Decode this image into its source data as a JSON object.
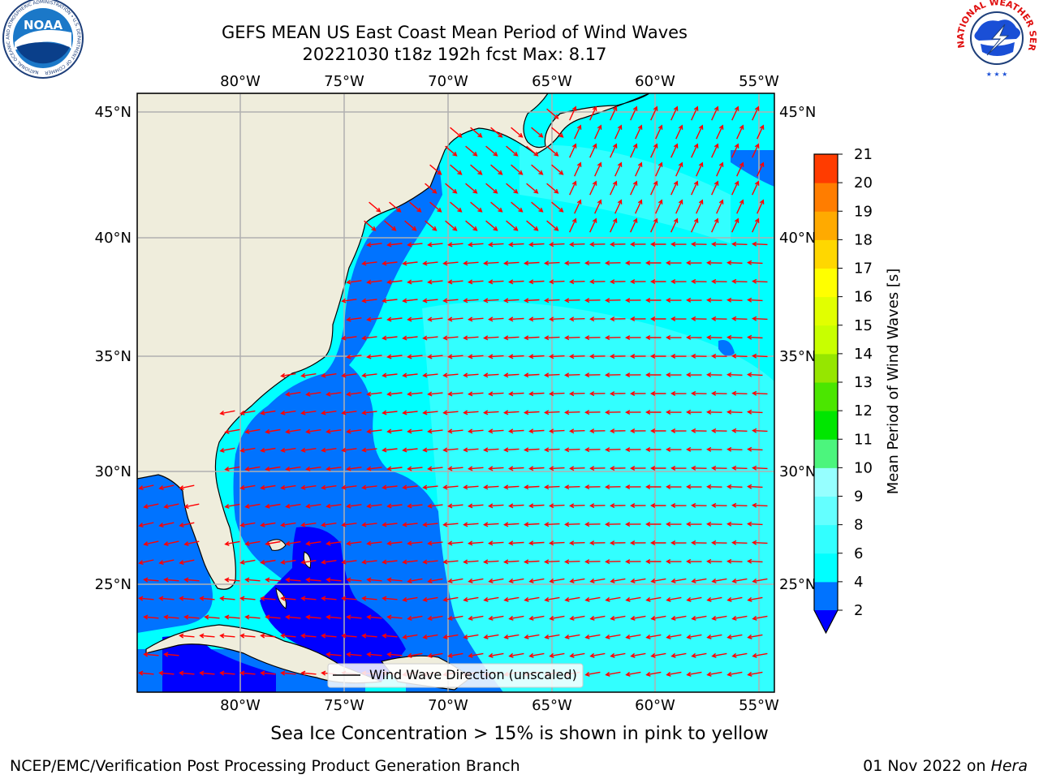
{
  "header": {
    "title_line1": "GEFS MEAN US East Coast Mean Period of Wind Waves",
    "title_line2": "20221030 t18z 192h fcst   Max: 8.17"
  },
  "logos": {
    "left": "NOAA",
    "left_ring": "NATIONAL OCEANIC AND ATMOSPHERIC ADMINISTRATION • U.S. DEPARTMENT OF COMMERCE",
    "right_ring": "NATIONAL WEATHER SERVICE"
  },
  "map": {
    "lon_labels": [
      "80°W",
      "75°W",
      "70°W",
      "65°W",
      "60°W",
      "55°W"
    ],
    "lat_labels": [
      "45°N",
      "40°N",
      "35°N",
      "30°N",
      "25°N"
    ],
    "legend": "Wind Wave Direction (unscaled)",
    "colors": {
      "land": "#efeddc",
      "arrow": "#ff0000",
      "grid": "#b0b0b0"
    }
  },
  "colorbar": {
    "label": "Mean Period of Wind Waves [s]",
    "ticks": [
      "2",
      "4",
      "6",
      "8",
      "9",
      "10",
      "11",
      "12",
      "13",
      "14",
      "15",
      "16",
      "17",
      "18",
      "19",
      "20",
      "21"
    ],
    "colors": [
      "#0073ff",
      "#00ffff",
      "#32ffff",
      "#64ffff",
      "#96ffff",
      "#4cf57d",
      "#00e600",
      "#4be600",
      "#96e600",
      "#c8ff00",
      "#e1ff00",
      "#ffff00",
      "#ffd700",
      "#ffaa00",
      "#ff7d00",
      "#ff3c00",
      "#ff0000"
    ],
    "under_color": "#0000ff"
  },
  "footer": {
    "ice_note": "Sea Ice Concentration > 15% is shown in pink to yellow",
    "credit": "NCEP/EMC/Verification Post Processing Product Generation Branch",
    "date": "01 Nov 2022 on ",
    "host": "Hera"
  }
}
